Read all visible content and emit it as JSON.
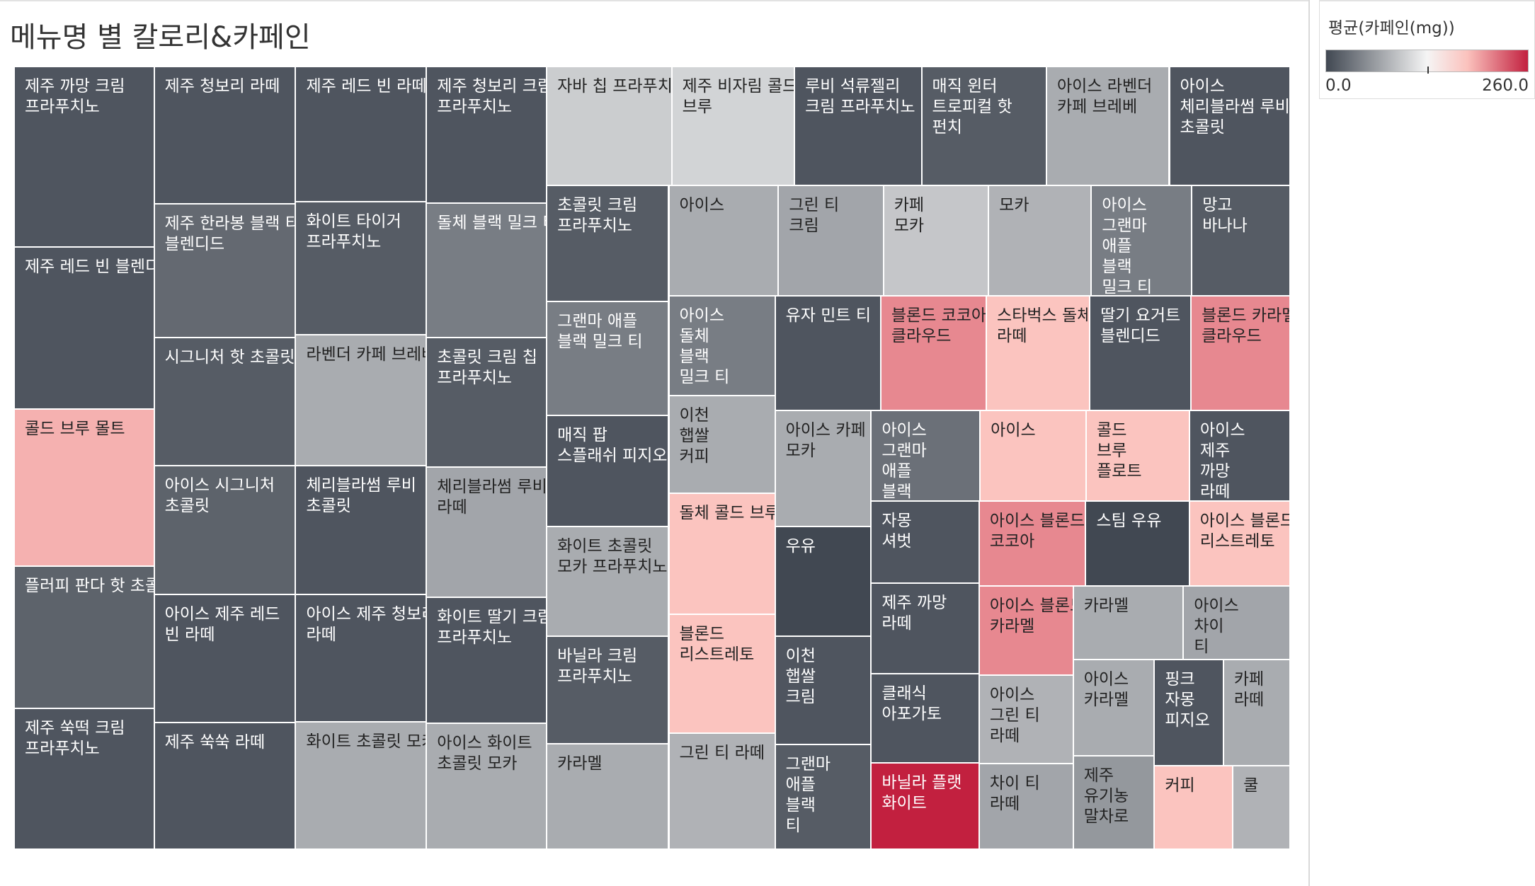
{
  "header": {
    "title": "메뉴명 별 칼로리&카페인"
  },
  "legend": {
    "title": "평균(카페인(mg))",
    "min_label": "0.0",
    "max_label": "260.0",
    "min": 0,
    "max": 260,
    "colors": [
      "#414852",
      "#f5f5f5",
      "#fbc2bd",
      "#c2203f"
    ]
  },
  "chart_data": {
    "type": "treemap",
    "title": "메뉴명 별 칼로리&카페인",
    "size_measure": "칼로리",
    "color_measure": "평균(카페인(mg))",
    "color_range": [
      0,
      260
    ],
    "items": [
      {
        "label": "제주 까망 크림\n프라푸치노",
        "calories": 500,
        "caffeine": 10
      },
      {
        "label": "제주 레드 빈 블렌디드",
        "calories": 450,
        "caffeine": 10
      },
      {
        "label": "콜드 브루 몰트",
        "calories": 435,
        "caffeine": 190
      },
      {
        "label": "플러피 판다 핫 초콜릿",
        "calories": 395,
        "caffeine": 20
      },
      {
        "label": "제주 쑥떡 크림\n프라푸치노",
        "calories": 390,
        "caffeine": 10
      },
      {
        "label": "제주 청보리 라떼",
        "calories": 385,
        "caffeine": 10
      },
      {
        "label": "제주 한라봉 블랙 티\n블렌디드",
        "calories": 375,
        "caffeine": 25
      },
      {
        "label": "시그니처 핫 초콜릿",
        "calories": 360,
        "caffeine": 15
      },
      {
        "label": "아이스 시그니처\n초콜릿",
        "calories": 360,
        "caffeine": 20
      },
      {
        "label": "아이스 제주 레드\n빈 라떼",
        "calories": 360,
        "caffeine": 10
      },
      {
        "label": "제주 쑥쑥 라떼",
        "calories": 355,
        "caffeine": 10
      },
      {
        "label": "제주 레드 빈 라떼",
        "calories": 350,
        "caffeine": 10
      },
      {
        "label": "화이트 타이거\n프라푸치노",
        "calories": 345,
        "caffeine": 15
      },
      {
        "label": "라벤더 카페 브레베",
        "calories": 340,
        "caffeine": 75
      },
      {
        "label": "체리블라썸 루비\n초콜릿",
        "calories": 335,
        "caffeine": 10
      },
      {
        "label": "아이스 제주 청보리\n라떼",
        "calories": 330,
        "caffeine": 10
      },
      {
        "label": "화이트 초콜릿 모카",
        "calories": 330,
        "caffeine": 75
      },
      {
        "label": "제주 청보리 크림\n프라푸치노",
        "calories": 325,
        "caffeine": 10
      },
      {
        "label": "돌체 블랙 밀크 티",
        "calories": 320,
        "caffeine": 40
      },
      {
        "label": "초콜릿 크림 칩\n프라푸치노",
        "calories": 310,
        "caffeine": 15
      },
      {
        "label": "체리블라썸 루비\n라떼",
        "calories": 310,
        "caffeine": 70
      },
      {
        "label": "화이트 딸기 크림\n프라푸치노",
        "calories": 300,
        "caffeine": 10
      },
      {
        "label": "아이스 화이트\n초콜릿 모카",
        "calories": 300,
        "caffeine": 75
      },
      {
        "label": "자바 칩 프라푸치노",
        "calories": 295,
        "caffeine": 100
      },
      {
        "label": "제주 비자림 콜드\n브루",
        "calories": 290,
        "caffeine": 105
      },
      {
        "label": "루비 석류젤리\n크림 프라푸치노",
        "calories": 300,
        "caffeine": 10
      },
      {
        "label": "매직 윈터\n트로피컬 핫\n펀치",
        "calories": 295,
        "caffeine": 15
      },
      {
        "label": "아이스 라벤더\n카페 브레베",
        "calories": 290,
        "caffeine": 75
      },
      {
        "label": "아이스\n체리블라썸 루비\n초콜릿",
        "calories": 285,
        "caffeine": 10
      },
      {
        "label": "초콜릿 크림\n프라푸치노",
        "calories": 280,
        "caffeine": 15
      },
      {
        "label": "그랜마 애플\n블랙 밀크 티",
        "calories": 275,
        "caffeine": 40
      },
      {
        "label": "매직 팝\n스플래쉬 피지오",
        "calories": 270,
        "caffeine": 10
      },
      {
        "label": "화이트 초콜릿\n모카 프라푸치노",
        "calories": 265,
        "caffeine": 75
      },
      {
        "label": "바닐라 크림\n프라푸치노",
        "calories": 260,
        "caffeine": 15
      },
      {
        "label": "카라멜",
        "calories": 255,
        "caffeine": 75
      },
      {
        "label": "아이스",
        "calories": 240,
        "caffeine": 75
      },
      {
        "label": "그린 티\n크림",
        "calories": 230,
        "caffeine": 70
      },
      {
        "label": "카페\n모카",
        "calories": 230,
        "caffeine": 95
      },
      {
        "label": "모카",
        "calories": 225,
        "caffeine": 80
      },
      {
        "label": "아이스\n그랜마\n애플\n블랙\n밀크 티",
        "calories": 220,
        "caffeine": 40
      },
      {
        "label": "망고\n바나나",
        "calories": 215,
        "caffeine": 15
      },
      {
        "label": "아이스\n돌체\n블랙\n밀크 티",
        "calories": 210,
        "caffeine": 40
      },
      {
        "label": "이천\n햅쌀\n커피",
        "calories": 205,
        "caffeine": 75
      },
      {
        "label": "돌체 콜드 브루",
        "calories": 255,
        "caffeine": 180
      },
      {
        "label": "블론드\n리스트레토",
        "calories": 250,
        "caffeine": 180
      },
      {
        "label": "그린 티 라떼",
        "calories": 245,
        "caffeine": 80
      },
      {
        "label": "유자 민트 티",
        "calories": 240,
        "caffeine": 10
      },
      {
        "label": "블론드 코코아\n클라우드",
        "calories": 240,
        "caffeine": 210
      },
      {
        "label": "스타벅스 돌체\n라떼",
        "calories": 235,
        "caffeine": 180
      },
      {
        "label": "딸기 요거트\n블렌디드",
        "calories": 230,
        "caffeine": 10
      },
      {
        "label": "블론드 카라멜\n클라우드",
        "calories": 225,
        "caffeine": 210
      },
      {
        "label": "아이스 카페\n모카",
        "calories": 220,
        "caffeine": 75
      },
      {
        "label": "우유",
        "calories": 210,
        "caffeine": 0
      },
      {
        "label": "이천\n햅쌀\n크림",
        "calories": 205,
        "caffeine": 10
      },
      {
        "label": "그랜마\n애플\n블랙\n티",
        "calories": 200,
        "caffeine": 15
      },
      {
        "label": "아이스\n그랜마\n애플\n블랙",
        "calories": 195,
        "caffeine": 30
      },
      {
        "label": "아이스",
        "calories": 190,
        "caffeine": 180
      },
      {
        "label": "콜드\n브루\n플로트",
        "calories": 185,
        "caffeine": 180
      },
      {
        "label": "아이스\n제주\n까망\n라떼",
        "calories": 180,
        "caffeine": 10
      },
      {
        "label": "자몽\n셔벗",
        "calories": 175,
        "caffeine": 10
      },
      {
        "label": "제주 까망\n라떼",
        "calories": 195,
        "caffeine": 10
      },
      {
        "label": "클래식\n아포가토",
        "calories": 190,
        "caffeine": 10
      },
      {
        "label": "바닐라 플랫\n화이트",
        "calories": 185,
        "caffeine": 260
      },
      {
        "label": "아이스 블론드\n코코아",
        "calories": 180,
        "caffeine": 210
      },
      {
        "label": "스팀 우유",
        "calories": 175,
        "caffeine": 0
      },
      {
        "label": "아이스 블론드\n리스트레토",
        "calories": 170,
        "caffeine": 180
      },
      {
        "label": "아이스 블론드\n카라멜",
        "calories": 165,
        "caffeine": 210
      },
      {
        "label": "아이스\n그린 티\n라떼",
        "calories": 165,
        "caffeine": 80
      },
      {
        "label": "차이 티\n라떼",
        "calories": 160,
        "caffeine": 70
      },
      {
        "label": "카라멜",
        "calories": 160,
        "caffeine": 75
      },
      {
        "label": "아이스\n차이\n티",
        "calories": 155,
        "caffeine": 70
      },
      {
        "label": "아이스\n카라멜",
        "calories": 155,
        "caffeine": 75
      },
      {
        "label": "제주\n유기농\n말차로",
        "calories": 150,
        "caffeine": 60
      },
      {
        "label": "핑크\n자몽\n피지오",
        "calories": 145,
        "caffeine": 10
      },
      {
        "label": "카페\n라떼",
        "calories": 140,
        "caffeine": 75
      },
      {
        "label": "커피",
        "calories": 130,
        "caffeine": 180
      },
      {
        "label": "쿨",
        "calories": 95,
        "caffeine": 80
      }
    ]
  }
}
